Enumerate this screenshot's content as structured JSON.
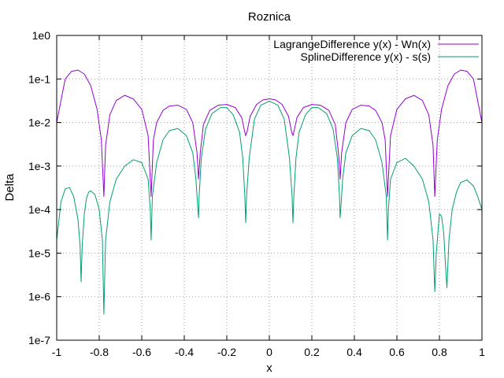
{
  "chart_data": {
    "type": "line",
    "title": "Roznica",
    "xlabel": "x",
    "ylabel": "Delta",
    "xlim": [
      -1,
      1
    ],
    "ylim": [
      1e-07,
      1
    ],
    "yscale": "log",
    "grid": true,
    "legend_position": "top-right",
    "x_ticks": [
      "-1",
      "-0.8",
      "-0.6",
      "-0.4",
      "-0.2",
      "0",
      "0.2",
      "0.4",
      "0.6",
      "0.8",
      "1"
    ],
    "y_ticks": [
      "1e-7",
      "1e-6",
      "1e-5",
      "1e-4",
      "1e-3",
      "1e-2",
      "1e-1",
      "1e0"
    ],
    "series": [
      {
        "name": "LagrangeDifference y(x) - Wn(x)",
        "color": "#9400d3",
        "x": [
          -1.0,
          -0.96,
          -0.93,
          -0.9,
          -0.87,
          -0.84,
          -0.81,
          -0.79,
          -0.778,
          -0.77,
          -0.75,
          -0.72,
          -0.68,
          -0.64,
          -0.6,
          -0.57,
          -0.556,
          -0.545,
          -0.53,
          -0.5,
          -0.47,
          -0.43,
          -0.39,
          -0.36,
          -0.34,
          -0.333,
          -0.325,
          -0.31,
          -0.28,
          -0.24,
          -0.2,
          -0.16,
          -0.13,
          -0.115,
          -0.111,
          -0.105,
          -0.09,
          -0.06,
          -0.03,
          0.0,
          0.03,
          0.06,
          0.09,
          0.105,
          0.111,
          0.115,
          0.13,
          0.16,
          0.2,
          0.24,
          0.28,
          0.31,
          0.325,
          0.333,
          0.34,
          0.36,
          0.39,
          0.43,
          0.47,
          0.5,
          0.53,
          0.545,
          0.556,
          0.57,
          0.6,
          0.64,
          0.68,
          0.72,
          0.75,
          0.77,
          0.778,
          0.79,
          0.81,
          0.84,
          0.87,
          0.9,
          0.93,
          0.96,
          1.0
        ],
        "y": [
          0.01,
          0.1,
          0.15,
          0.16,
          0.13,
          0.07,
          0.02,
          0.004,
          0.0002,
          0.003,
          0.015,
          0.032,
          0.042,
          0.035,
          0.02,
          0.005,
          0.0002,
          0.004,
          0.01,
          0.019,
          0.024,
          0.025,
          0.02,
          0.01,
          0.002,
          0.0005,
          0.002,
          0.009,
          0.019,
          0.025,
          0.026,
          0.022,
          0.013,
          0.006,
          0.005,
          0.006,
          0.014,
          0.026,
          0.033,
          0.035,
          0.033,
          0.026,
          0.014,
          0.006,
          0.005,
          0.006,
          0.013,
          0.022,
          0.026,
          0.025,
          0.019,
          0.009,
          0.002,
          0.0005,
          0.002,
          0.01,
          0.02,
          0.025,
          0.024,
          0.019,
          0.01,
          0.004,
          0.0002,
          0.005,
          0.02,
          0.035,
          0.042,
          0.032,
          0.015,
          0.003,
          0.0002,
          0.004,
          0.02,
          0.07,
          0.13,
          0.16,
          0.15,
          0.1,
          0.01
        ]
      },
      {
        "name": "SplineDifference y(x) - s(s)",
        "color": "#009e73",
        "x": [
          -1.0,
          -0.98,
          -0.96,
          -0.94,
          -0.92,
          -0.9,
          -0.89,
          -0.885,
          -0.88,
          -0.87,
          -0.86,
          -0.85,
          -0.84,
          -0.82,
          -0.8,
          -0.785,
          -0.778,
          -0.77,
          -0.75,
          -0.72,
          -0.68,
          -0.64,
          -0.6,
          -0.57,
          -0.56,
          -0.556,
          -0.55,
          -0.53,
          -0.5,
          -0.47,
          -0.43,
          -0.39,
          -0.36,
          -0.345,
          -0.336,
          -0.333,
          -0.33,
          -0.32,
          -0.3,
          -0.27,
          -0.23,
          -0.2,
          -0.17,
          -0.14,
          -0.125,
          -0.115,
          -0.111,
          -0.107,
          -0.095,
          -0.07,
          -0.04,
          0.0,
          0.04,
          0.07,
          0.095,
          0.107,
          0.111,
          0.115,
          0.125,
          0.14,
          0.17,
          0.2,
          0.23,
          0.27,
          0.3,
          0.32,
          0.33,
          0.333,
          0.336,
          0.345,
          0.36,
          0.39,
          0.43,
          0.47,
          0.5,
          0.53,
          0.55,
          0.556,
          0.56,
          0.57,
          0.6,
          0.64,
          0.68,
          0.72,
          0.75,
          0.77,
          0.778,
          0.785,
          0.8,
          0.81,
          0.82,
          0.83,
          0.835,
          0.845,
          0.86,
          0.88,
          0.9,
          0.93,
          0.96,
          0.98,
          1.0
        ],
        "y": [
          2e-05,
          0.00015,
          0.0003,
          0.00032,
          0.0002,
          6e-05,
          1.5e-05,
          2.2e-06,
          1.5e-05,
          8e-05,
          0.00018,
          0.00025,
          0.00027,
          0.00022,
          0.0001,
          2e-05,
          4e-07,
          2e-05,
          0.00015,
          0.0005,
          0.001,
          0.0014,
          0.0012,
          0.0005,
          0.0001,
          2e-05,
          0.0002,
          0.0012,
          0.004,
          0.0065,
          0.0073,
          0.005,
          0.002,
          0.0005,
          0.0001,
          6.5e-05,
          0.0002,
          0.0015,
          0.007,
          0.016,
          0.022,
          0.022,
          0.015,
          0.006,
          0.0015,
          0.0002,
          5e-05,
          0.0002,
          0.0015,
          0.012,
          0.025,
          0.031,
          0.025,
          0.012,
          0.0015,
          0.0002,
          5e-05,
          0.0002,
          0.0015,
          0.006,
          0.015,
          0.022,
          0.022,
          0.016,
          0.007,
          0.0015,
          0.0002,
          6.5e-05,
          0.0001,
          0.0005,
          0.002,
          0.005,
          0.0073,
          0.0065,
          0.004,
          0.0012,
          0.0002,
          2e-05,
          0.0001,
          0.0005,
          0.0012,
          0.0015,
          0.001,
          0.0005,
          0.00015,
          2e-05,
          1.3e-06,
          1e-05,
          8e-05,
          7e-05,
          3e-05,
          4e-06,
          1.6e-06,
          2e-05,
          0.0001,
          0.00025,
          0.00042,
          0.00048,
          0.00035,
          0.0002,
          0.0001
        ]
      }
    ]
  }
}
